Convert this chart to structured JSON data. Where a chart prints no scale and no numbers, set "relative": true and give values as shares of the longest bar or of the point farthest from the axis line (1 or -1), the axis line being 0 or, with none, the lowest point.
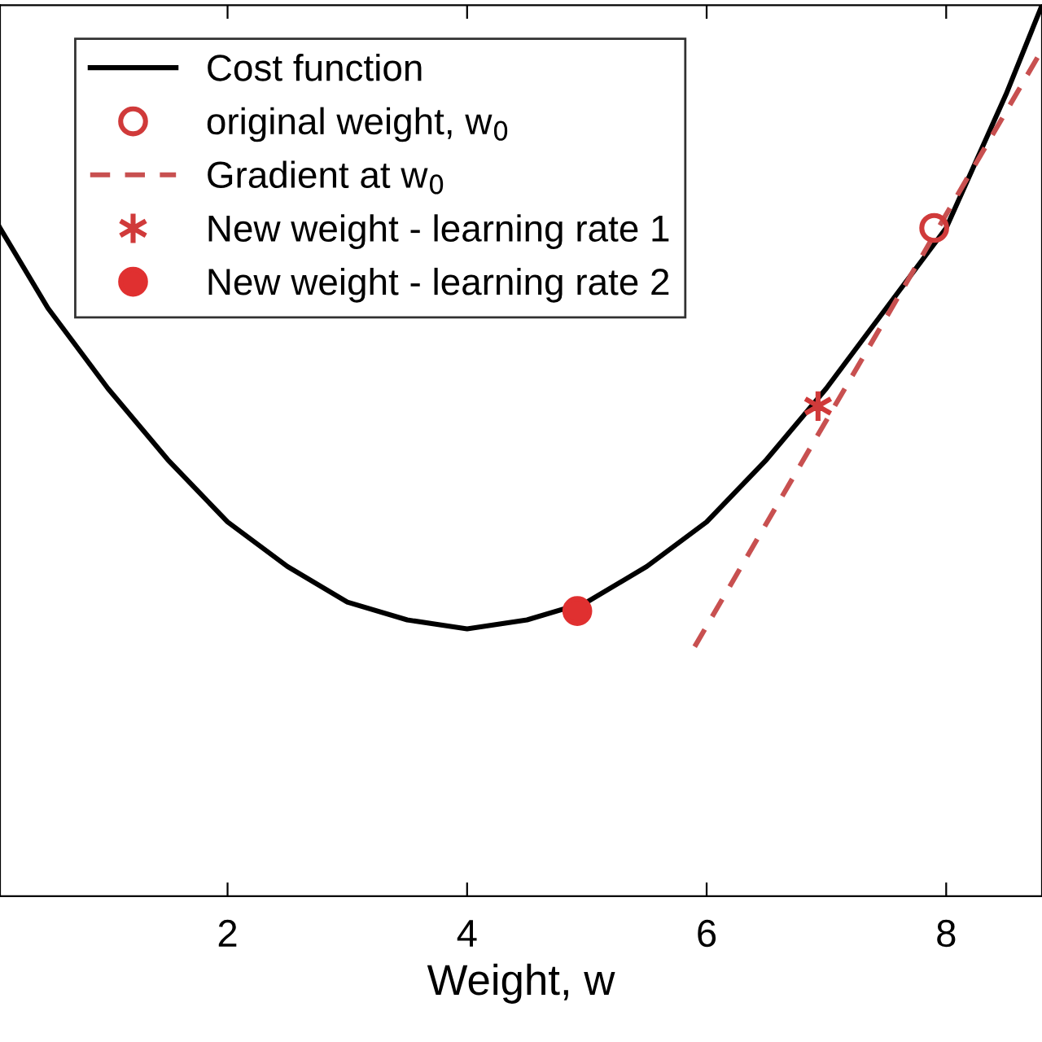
{
  "chart_data": {
    "type": "line",
    "relative": true,
    "xlabel": "Weight, w",
    "xlim": [
      0.1,
      8.8
    ],
    "xticks": [
      2,
      4,
      6,
      8
    ],
    "grid": false,
    "legend": "top left",
    "series": [
      {
        "name": "Cost function",
        "color": "#000000",
        "marker": "none",
        "line_style": "solid",
        "x": [
          0.1,
          0.5,
          1.0,
          1.5,
          2.0,
          2.5,
          3.0,
          3.5,
          4.0,
          4.5,
          5.0,
          5.5,
          6.0,
          6.5,
          7.0,
          7.5,
          8.0,
          8.5,
          8.8
        ],
        "values": [
          0.75,
          0.66,
          0.57,
          0.49,
          0.42,
          0.37,
          0.33,
          0.31,
          0.3,
          0.31,
          0.33,
          0.37,
          0.42,
          0.49,
          0.57,
          0.66,
          0.75,
          0.9,
          1.0
        ]
      },
      {
        "name": "original weight, w$_{0}$",
        "type": "scatter",
        "color": "#d03a3a",
        "marker": "circle",
        "x": [
          7.9
        ],
        "values": [
          0.75
        ]
      },
      {
        "name": "Gradient at w$_{0}$",
        "type": "line",
        "color": "#c85050",
        "marker": "none",
        "line_style": "dashed",
        "x": [
          5.9,
          8.8
        ],
        "values": [
          0.28,
          0.95
        ]
      },
      {
        "name": "New weight - learning rate 1",
        "type": "scatter",
        "color": "#d03a3a",
        "marker": "cross",
        "x": [
          6.93
        ],
        "values": [
          0.55
        ]
      },
      {
        "name": "New weight - learning rate 2",
        "type": "scatter",
        "color": "#e03030",
        "marker": "circle",
        "x": [
          4.92
        ],
        "values": [
          0.32
        ]
      }
    ]
  }
}
